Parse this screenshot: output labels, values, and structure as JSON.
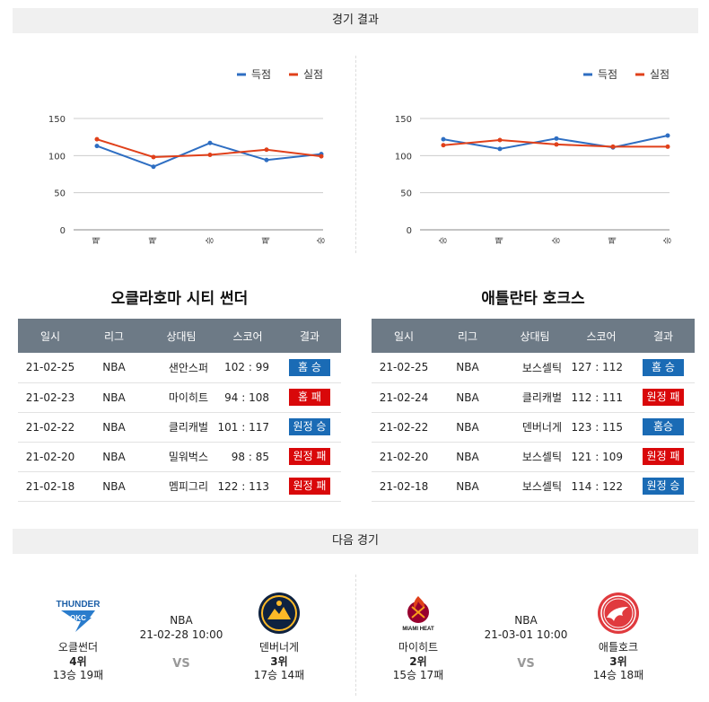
{
  "sections": {
    "results_title": "경기 결과",
    "next_title": "다음 경기"
  },
  "legend": {
    "scored": "득점",
    "allowed": "실점"
  },
  "colors": {
    "scored": "#2e6ec2",
    "allowed": "#e0401a",
    "win": "#1a6bb5",
    "loss": "#d9080a"
  },
  "chart_data": [
    {
      "type": "line",
      "categories": [
        "패",
        "패",
        "승",
        "패",
        "승"
      ],
      "ylim": [
        0,
        150
      ],
      "yticks": [
        0,
        50,
        100,
        150
      ],
      "legend": "top-right",
      "grid": true,
      "series": [
        {
          "name": "득점",
          "values": [
            113,
            85,
            117,
            94,
            102
          ]
        },
        {
          "name": "실점",
          "values": [
            122,
            98,
            101,
            108,
            99
          ]
        }
      ]
    },
    {
      "type": "line",
      "categories": [
        "승",
        "패",
        "승",
        "패",
        "승"
      ],
      "ylim": [
        0,
        150
      ],
      "yticks": [
        0,
        50,
        100,
        150
      ],
      "legend": "top-right",
      "grid": true,
      "series": [
        {
          "name": "득점",
          "values": [
            122,
            109,
            123,
            111,
            127
          ]
        },
        {
          "name": "실점",
          "values": [
            114,
            121,
            115,
            112,
            112
          ]
        }
      ]
    }
  ],
  "headers": [
    "일시",
    "리그",
    "상대팀",
    "스코어",
    "결과"
  ],
  "teams": [
    {
      "name": "오클라호마 시티 썬더",
      "rows": [
        {
          "date": "21-02-25",
          "league": "NBA",
          "opponent": "샌안스퍼",
          "score": "102 : 99",
          "result": "홈 승",
          "win": true
        },
        {
          "date": "21-02-23",
          "league": "NBA",
          "opponent": "마이히트",
          "score": "94 : 108",
          "result": "홈 패",
          "win": false
        },
        {
          "date": "21-02-22",
          "league": "NBA",
          "opponent": "클리캐벌",
          "score": "101 : 117",
          "result": "원정 승",
          "win": true
        },
        {
          "date": "21-02-20",
          "league": "NBA",
          "opponent": "밀워벅스",
          "score": "98 : 85",
          "result": "원정 패",
          "win": false
        },
        {
          "date": "21-02-18",
          "league": "NBA",
          "opponent": "멤피그리",
          "score": "122 : 113",
          "result": "원정 패",
          "win": false
        }
      ]
    },
    {
      "name": "애틀란타 호크스",
      "rows": [
        {
          "date": "21-02-25",
          "league": "NBA",
          "opponent": "보스셀틱",
          "score": "127 : 112",
          "result": "홈 승",
          "win": true
        },
        {
          "date": "21-02-24",
          "league": "NBA",
          "opponent": "클리캐벌",
          "score": "112 : 111",
          "result": "원정 패",
          "win": false
        },
        {
          "date": "21-02-22",
          "league": "NBA",
          "opponent": "덴버너게",
          "score": "123 : 115",
          "result": "홈승",
          "win": true
        },
        {
          "date": "21-02-20",
          "league": "NBA",
          "opponent": "보스셀틱",
          "score": "121 : 109",
          "result": "원정 패",
          "win": false
        },
        {
          "date": "21-02-18",
          "league": "NBA",
          "opponent": "보스셀틱",
          "score": "114 : 122",
          "result": "원정 승",
          "win": true
        }
      ]
    }
  ],
  "next_games": [
    {
      "league": "NBA",
      "datetime": "21-02-28 10:00",
      "vs": "VS",
      "home": {
        "name": "오클썬더",
        "rank": "4위",
        "record": "13승 19패",
        "logo": "thunder-logo",
        "logo_text": "THUNDER"
      },
      "away": {
        "name": "덴버너게",
        "rank": "3위",
        "record": "17승 14패",
        "logo": "nuggets-logo",
        "logo_text": ""
      }
    },
    {
      "league": "NBA",
      "datetime": "21-03-01 10:00",
      "vs": "VS",
      "home": {
        "name": "마이히트",
        "rank": "2위",
        "record": "15승 17패",
        "logo": "heat-logo",
        "logo_text": "MIAMI HEAT"
      },
      "away": {
        "name": "애틀호크",
        "rank": "3위",
        "record": "14승 18패",
        "logo": "hawks-logo",
        "logo_text": ""
      }
    }
  ]
}
